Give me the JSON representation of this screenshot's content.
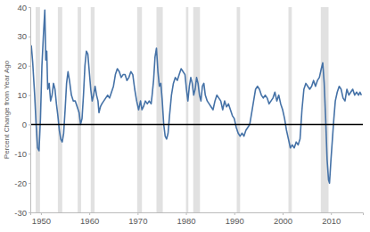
{
  "chart_data": {
    "type": "line",
    "y_label": "Percent Change from Year Ago",
    "color": "#4572a7",
    "xlim": [
      1947.8,
      2016.6
    ],
    "xticks": [
      1950,
      1960,
      1970,
      1980,
      1990,
      2000,
      2010
    ],
    "ylim": [
      -30,
      40
    ],
    "yticks": [
      -30,
      -20,
      -10,
      0,
      10,
      20,
      30,
      40
    ],
    "grid": false,
    "recessions": [
      [
        1948.9,
        1949.8
      ],
      [
        1953.5,
        1954.4
      ],
      [
        1957.6,
        1958.3
      ],
      [
        1960.3,
        1961.1
      ],
      [
        1969.9,
        1970.9
      ],
      [
        1973.9,
        1975.2
      ],
      [
        1980.0,
        1980.5
      ],
      [
        1981.5,
        1982.9
      ],
      [
        1990.5,
        1991.2
      ],
      [
        2001.2,
        2001.9
      ],
      [
        2007.9,
        2009.5
      ]
    ],
    "x": [
      1948.0,
      1948.3,
      1948.7,
      1949.0,
      1949.3,
      1949.6,
      1949.9,
      1950.2,
      1950.5,
      1950.8,
      1951.0,
      1951.2,
      1951.4,
      1951.7,
      1952.0,
      1952.3,
      1952.6,
      1952.9,
      1953.2,
      1953.5,
      1953.8,
      1954.1,
      1954.4,
      1954.7,
      1955.0,
      1955.3,
      1955.6,
      1955.9,
      1956.3,
      1956.7,
      1957.1,
      1957.5,
      1957.9,
      1958.2,
      1958.5,
      1958.8,
      1959.1,
      1959.4,
      1959.7,
      1960.0,
      1960.3,
      1960.6,
      1960.9,
      1961.2,
      1961.5,
      1961.8,
      1962.0,
      1962.3,
      1962.6,
      1963.0,
      1963.4,
      1963.8,
      1964.2,
      1964.6,
      1965.0,
      1965.4,
      1965.8,
      1966.2,
      1966.6,
      1967.0,
      1967.4,
      1967.8,
      1968.2,
      1968.6,
      1969.0,
      1969.4,
      1969.8,
      1970.2,
      1970.6,
      1970.9,
      1971.2,
      1971.6,
      1972.0,
      1972.4,
      1972.8,
      1973.0,
      1973.3,
      1973.6,
      1973.9,
      1974.2,
      1974.5,
      1974.8,
      1975.1,
      1975.4,
      1975.7,
      1976.0,
      1976.3,
      1976.6,
      1977.0,
      1977.4,
      1977.8,
      1978.2,
      1978.6,
      1979.0,
      1979.4,
      1979.8,
      1980.1,
      1980.4,
      1980.7,
      1981.0,
      1981.3,
      1981.6,
      1981.9,
      1982.2,
      1982.5,
      1982.8,
      1983.1,
      1983.4,
      1983.7,
      1984.0,
      1984.4,
      1984.8,
      1985.2,
      1985.6,
      1986.0,
      1986.4,
      1986.8,
      1987.2,
      1987.6,
      1988.0,
      1988.4,
      1988.8,
      1989.2,
      1989.6,
      1990.0,
      1990.4,
      1990.8,
      1991.2,
      1991.6,
      1992.0,
      1992.4,
      1992.8,
      1993.2,
      1993.6,
      1994.0,
      1994.4,
      1994.8,
      1995.2,
      1995.6,
      1996.0,
      1996.4,
      1996.8,
      1997.2,
      1997.6,
      1998.0,
      1998.4,
      1998.8,
      1999.2,
      1999.6,
      2000.0,
      2000.4,
      2000.8,
      2001.2,
      2001.6,
      2002.0,
      2002.4,
      2002.8,
      2003.2,
      2003.6,
      2004.0,
      2004.4,
      2004.8,
      2005.2,
      2005.6,
      2006.0,
      2006.4,
      2006.8,
      2007.2,
      2007.6,
      2008.0,
      2008.3,
      2008.6,
      2008.9,
      2009.2,
      2009.5,
      2009.7,
      2010.0,
      2010.3,
      2010.6,
      2010.9,
      2011.3,
      2011.7,
      2012.1,
      2012.5,
      2012.9,
      2013.3,
      2013.7,
      2014.1,
      2014.5,
      2014.9,
      2015.3,
      2015.7,
      2016.0,
      2016.3
    ],
    "values": [
      27,
      21,
      10,
      0,
      -8,
      -9,
      2,
      20,
      30,
      39,
      22,
      25,
      12,
      14,
      8,
      10,
      14,
      12,
      7,
      3,
      -2,
      -5,
      -6,
      -3,
      5,
      14,
      18,
      15,
      10,
      8,
      8,
      6,
      4,
      0,
      2,
      10,
      20,
      25,
      24,
      18,
      12,
      8,
      10,
      13,
      10,
      8,
      4,
      6,
      7,
      8,
      9,
      10,
      9,
      11,
      13,
      17,
      19,
      18,
      16,
      17,
      17,
      15,
      16,
      18,
      17,
      12,
      8,
      5,
      8,
      5,
      6,
      8,
      7,
      8,
      7,
      10,
      15,
      23,
      26,
      18,
      13,
      14,
      8,
      0,
      -4,
      -5,
      -3,
      3,
      10,
      14,
      16,
      15,
      17,
      19,
      18,
      17,
      12,
      8,
      13,
      16,
      14,
      10,
      12,
      16,
      14,
      10,
      8,
      13,
      14,
      10,
      8,
      7,
      6,
      5,
      8,
      10,
      9,
      8,
      5,
      8,
      6,
      7,
      5,
      3,
      2,
      -1,
      -3,
      -4,
      -3,
      -4,
      -2,
      -1,
      0,
      4,
      8,
      12,
      13,
      12,
      10,
      9,
      10,
      9,
      7,
      8,
      9,
      11,
      8,
      10,
      7,
      5,
      2,
      -2,
      -5,
      -8,
      -7,
      -8,
      -6,
      -7,
      -5,
      5,
      12,
      14,
      13,
      12,
      13,
      15,
      13,
      15,
      16,
      19,
      21,
      14,
      2,
      -12,
      -19,
      -20,
      -12,
      -5,
      2,
      8,
      11,
      13,
      12,
      9,
      8,
      12,
      10,
      11,
      12,
      10,
      11,
      10,
      11,
      10
    ]
  }
}
